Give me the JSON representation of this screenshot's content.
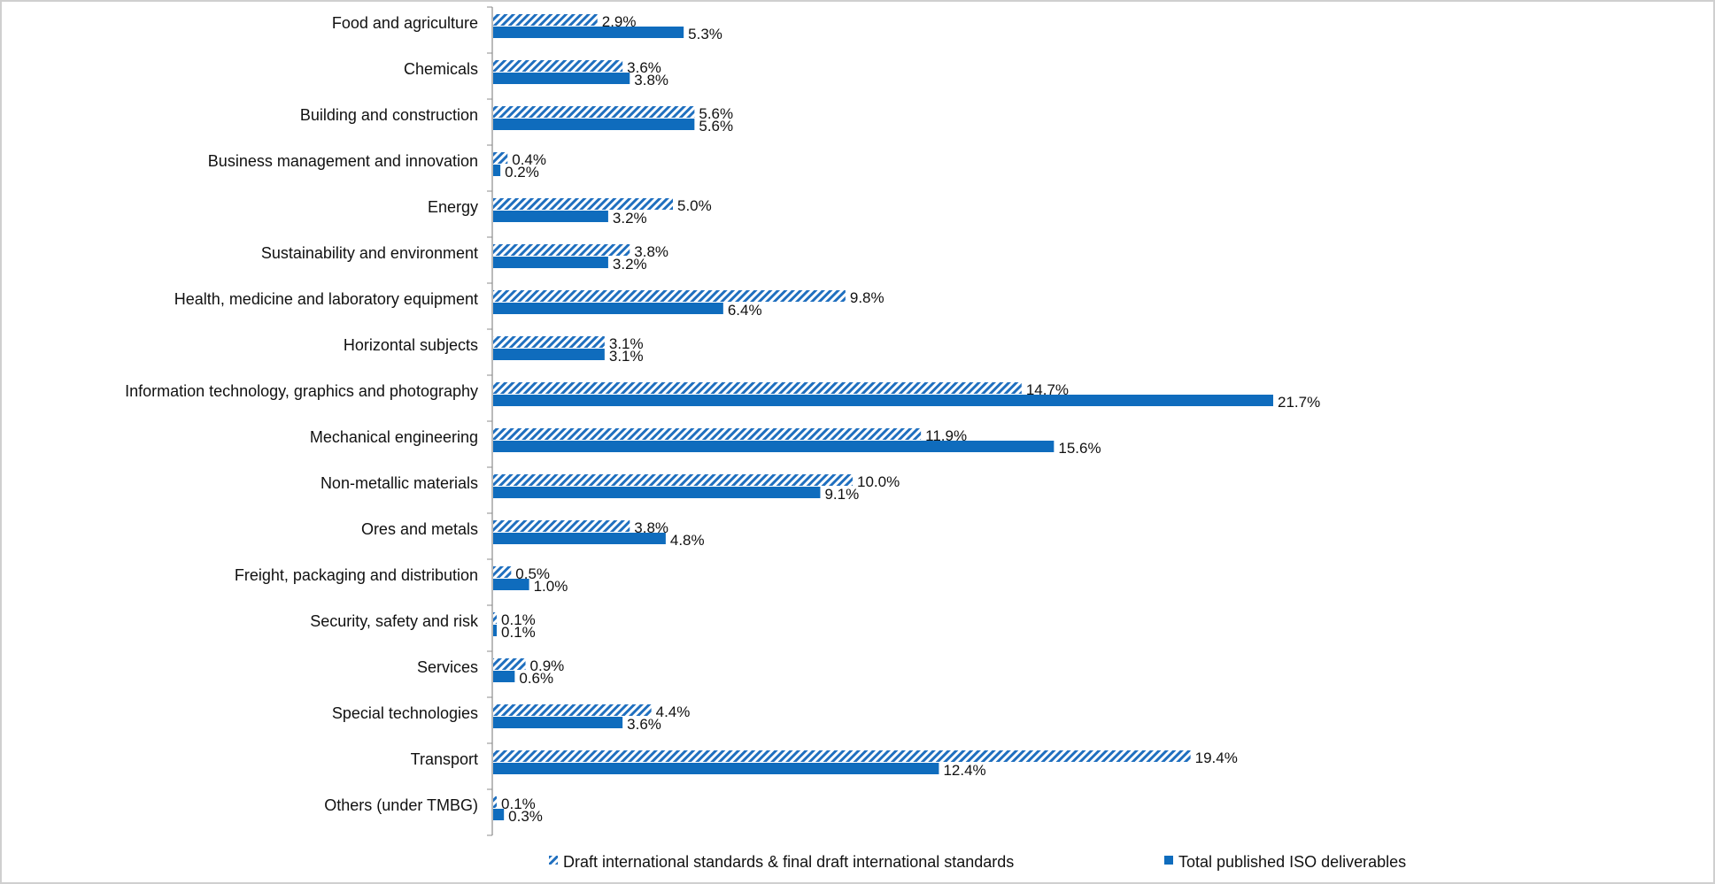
{
  "chart_data": {
    "type": "bar",
    "orientation": "horizontal",
    "title": "",
    "xlabel": "",
    "ylabel": "",
    "xlim": [
      0,
      23
    ],
    "grid": false,
    "legend_position": "bottom",
    "categories": [
      "Food and agriculture",
      "Chemicals",
      "Building and construction",
      "Business management and innovation",
      "Energy",
      "Sustainability and environment",
      "Health, medicine and laboratory equipment",
      "Horizontal subjects",
      "Information technology, graphics and photography",
      "Mechanical engineering",
      "Non-metallic materials",
      "Ores and metals",
      "Freight, packaging and distribution",
      "Security, safety and risk",
      "Services",
      "Special technologies",
      "Transport",
      "Others (under TMBG)"
    ],
    "series": [
      {
        "name": "Draft international standards & final draft international standards",
        "color": "#1f6fbf",
        "pattern": "diagonal-hatch",
        "values": [
          2.9,
          3.6,
          5.6,
          0.4,
          5.0,
          3.8,
          9.8,
          3.1,
          14.7,
          11.9,
          10.0,
          3.8,
          0.5,
          0.1,
          0.9,
          4.4,
          19.4,
          0.1
        ],
        "labels": [
          "2.9%",
          "3.6%",
          "5.6%",
          "0.4%",
          "5.0%",
          "3.8%",
          "9.8%",
          "3.1%",
          "14.7%",
          "11.9%",
          "10.0%",
          "3.8%",
          "0.5%",
          "0.1%",
          "0.9%",
          "4.4%",
          "19.4%",
          "0.1%"
        ]
      },
      {
        "name": "Total published ISO deliverables",
        "color": "#0f6cbd",
        "pattern": "solid",
        "values": [
          5.3,
          3.8,
          5.6,
          0.2,
          3.2,
          3.2,
          6.4,
          3.1,
          21.7,
          15.6,
          9.1,
          4.8,
          1.0,
          0.1,
          0.6,
          3.6,
          12.4,
          0.3
        ],
        "labels": [
          "5.3%",
          "3.8%",
          "5.6%",
          "0.2%",
          "3.2%",
          "3.2%",
          "6.4%",
          "3.1%",
          "21.7%",
          "15.6%",
          "9.1%",
          "4.8%",
          "1.0%",
          "0.1%",
          "0.6%",
          "3.6%",
          "12.4%",
          "0.3%"
        ]
      }
    ]
  }
}
